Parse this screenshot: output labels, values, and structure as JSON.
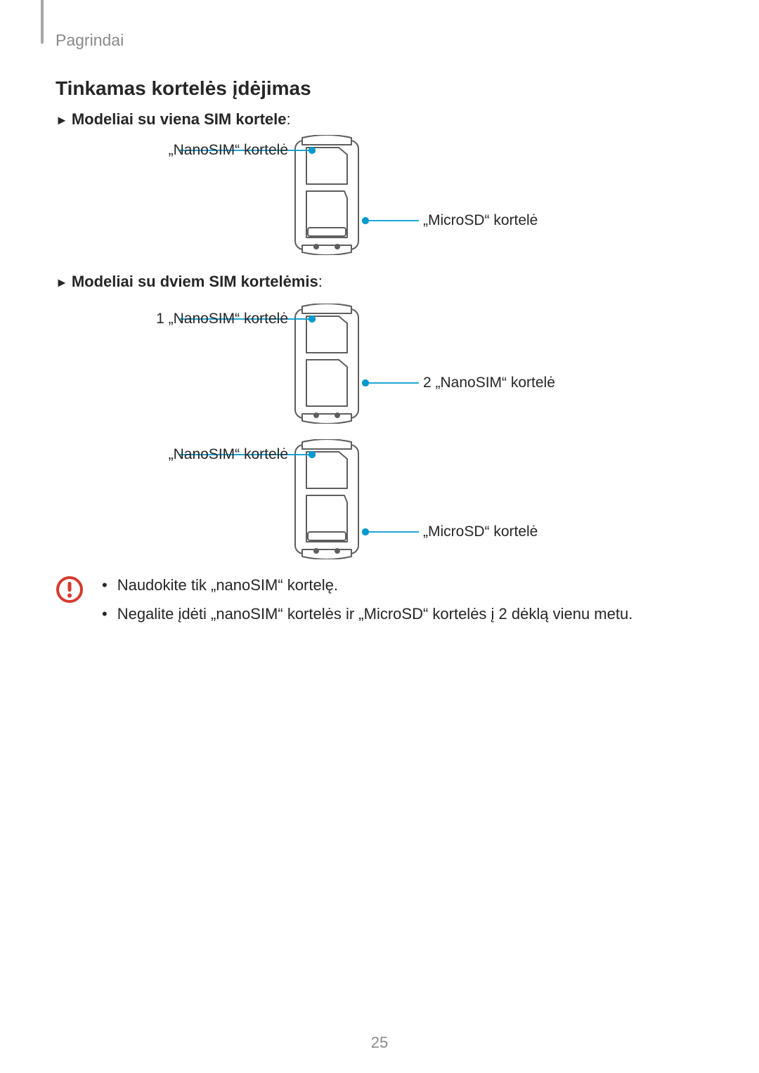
{
  "page": {
    "breadcrumb": "Pagrindai",
    "title": "Tinkamas kortelės įdėjimas",
    "page_number": "25"
  },
  "sections": {
    "single": {
      "heading_prefix": "► ",
      "heading": "Modeliai su viena SIM kortele",
      "heading_suffix": ":",
      "labels": {
        "left1": "„NanoSIM“ kortelė",
        "right1": "„MicroSD“ kortelė"
      }
    },
    "dual": {
      "heading_prefix": "► ",
      "heading": "Modeliai su dviem SIM kortelėmis",
      "heading_suffix": ":",
      "labels": {
        "left1": "1 „NanoSIM“ kortelė",
        "right1": "2 „NanoSIM“ kortelė",
        "left2": "„NanoSIM“ kortelė",
        "right2": "„MicroSD“ kortelė"
      }
    }
  },
  "caution": {
    "items": [
      "Naudokite tik „nanoSIM“ kortelę.",
      "Negalite įdėti „nanoSIM“ kortelės ir „MicroSD“ kortelės į 2 dėklą vienu metu."
    ]
  },
  "style": {
    "callout_color": "#0099cc",
    "callout_stroke": 1.8,
    "dot_radius": 4.2,
    "tray_stroke": "#5e5e5e",
    "tray_stroke_w": 2,
    "tray_fill": "#ffffff",
    "caution_color": "#d63a2f"
  }
}
